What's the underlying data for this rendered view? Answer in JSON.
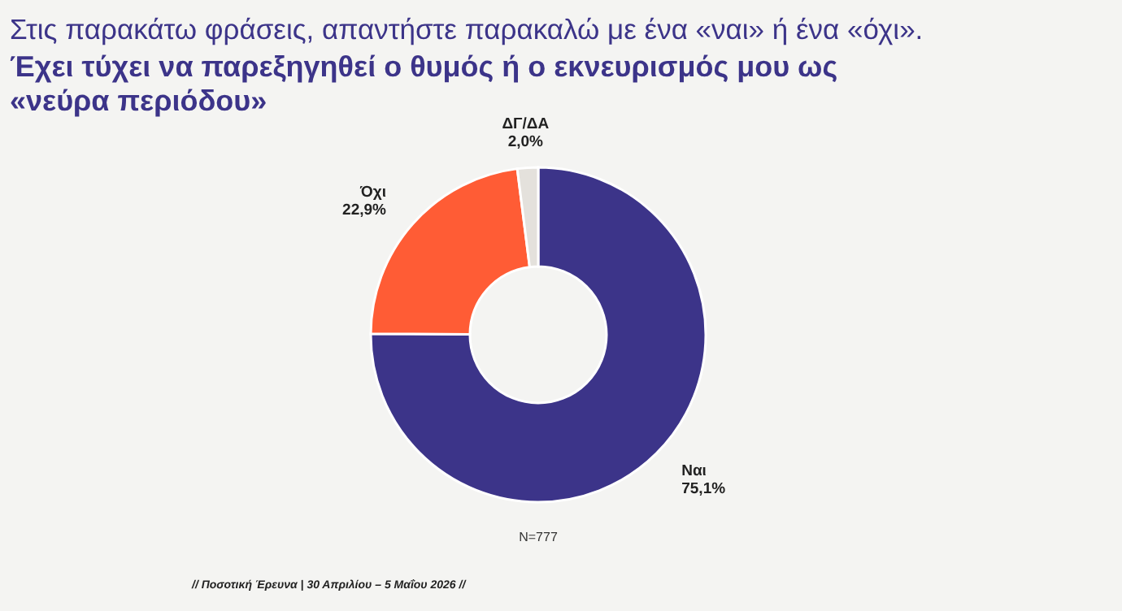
{
  "chart_data": {
    "type": "donut",
    "title": "Στις παρακάτω φράσεις, απαντήστε παρακαλώ με ένα «ναι» ή ένα «όχι».",
    "subtitle": "Έχει τύχει να παρεξηγηθεί ο θυμός ή ο εκνευρισμός μου ως «νεύρα περιόδου»",
    "categories": [
      "Ναι",
      "Όχι",
      "ΔΓ/ΔΑ"
    ],
    "values": [
      75.1,
      22.9,
      2.0
    ],
    "value_labels": [
      "75,1%",
      "22,9%",
      "2,0%"
    ],
    "colors": [
      "#3c3489",
      "#ff5c35",
      "#e4e1dc"
    ],
    "annotations": [
      "N=777",
      "// Ποσοτική Έρευνα | 30 Απριλίου – 5 Μαΐου 2026 //"
    ]
  }
}
